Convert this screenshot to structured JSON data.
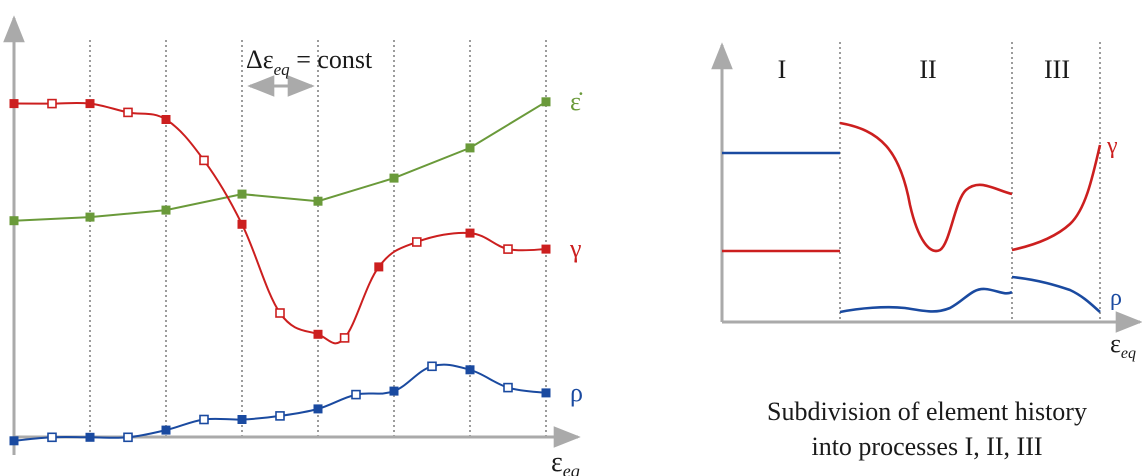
{
  "colors": {
    "gamma": "#cc1f1f",
    "rho": "#1a4aa0",
    "epsdot": "#6a9a3a",
    "axis": "#aaaaaa",
    "grid": "#666666",
    "text": "#1a1a1a"
  },
  "left_panel": {
    "x_axis_label": "ε",
    "x_axis_subscript": "eq",
    "delta_label_prefix": "Δε",
    "delta_label_subscript": "eq",
    "delta_label_suffix": " = const",
    "curves": [
      {
        "name": "ε̇",
        "color_key": "epsdot",
        "x": [
          0,
          1,
          2,
          3,
          4,
          5,
          6,
          7
        ],
        "y": [
          0.66,
          0.67,
          0.69,
          0.735,
          0.715,
          0.78,
          0.865,
          0.995
        ],
        "markers": [
          "s",
          "s",
          "s",
          "s",
          "s",
          "s",
          "s",
          "s"
        ]
      },
      {
        "name": "γ",
        "color_key": "gamma",
        "x": [
          0,
          0.5,
          1,
          1.5,
          2,
          2.5,
          3,
          3.5,
          4,
          4.35,
          4.8,
          5.3,
          6,
          6.5,
          7
        ],
        "y": [
          0.99,
          0.99,
          0.99,
          0.965,
          0.945,
          0.83,
          0.65,
          0.4,
          0.34,
          0.33,
          0.53,
          0.6,
          0.625,
          0.58,
          0.58
        ],
        "markers": [
          "s",
          "o",
          "s",
          "o",
          "s",
          "o",
          "s",
          "o",
          "s",
          "o",
          "s",
          "o",
          "s",
          "o",
          "s"
        ]
      },
      {
        "name": "ρ",
        "color_key": "rho",
        "x": [
          0,
          0.5,
          1,
          1.5,
          2,
          2.5,
          3,
          3.5,
          4,
          4.5,
          5,
          5.5,
          6,
          6.5,
          7
        ],
        "y": [
          0.04,
          0.05,
          0.05,
          0.05,
          0.07,
          0.1,
          0.1,
          0.11,
          0.13,
          0.17,
          0.18,
          0.25,
          0.24,
          0.19,
          0.175
        ],
        "markers": [
          "s",
          "o",
          "s",
          "o",
          "s",
          "o",
          "s",
          "o",
          "s",
          "o",
          "s",
          "o",
          "s",
          "o",
          "s"
        ]
      }
    ]
  },
  "right_panel": {
    "process_labels": [
      "I",
      "II",
      "III"
    ],
    "x_axis_label": "ε",
    "x_axis_subscript": "eq",
    "curve_labels": {
      "gamma": "γ",
      "rho": "ρ"
    },
    "caption_line1": "Subdivision of element history",
    "caption_line2": "into processes I, II, III"
  }
}
